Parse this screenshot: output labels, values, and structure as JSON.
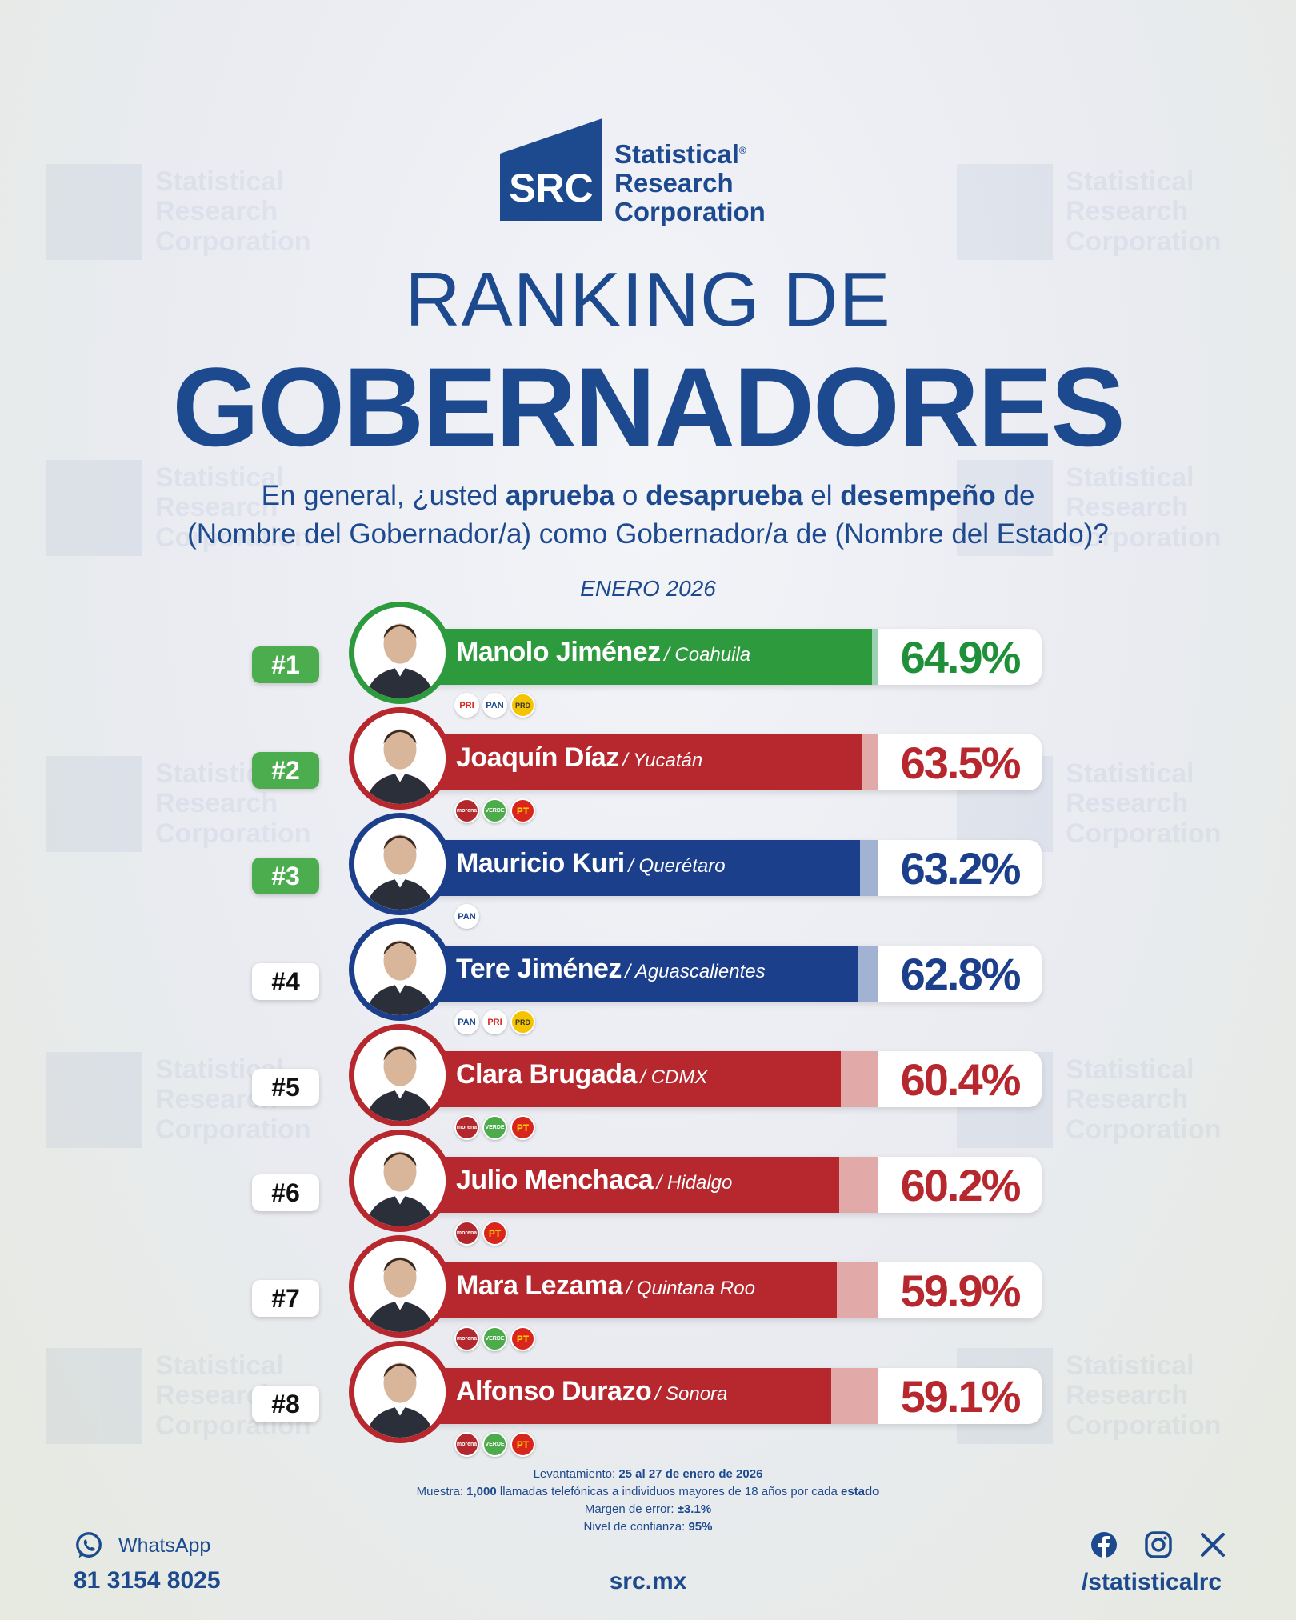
{
  "brand": {
    "logo_mark": "SRC",
    "line1": "Statistical",
    "line2": "Research",
    "line3": "Corporation",
    "registered": "®",
    "color": "#1d4a8f"
  },
  "title": {
    "top": "RANKING DE",
    "main": "GOBERNADORES"
  },
  "question": {
    "p1": "En general, ¿usted ",
    "b1": "aprueba",
    "p2": " o ",
    "b2": "desaprueba",
    "p3": " el ",
    "b3": "desempeño",
    "p4": " de",
    "line2": "(Nombre del Gobernador/a) como Gobernador/a de (Nombre del Estado)?"
  },
  "date": "ENERO 2026",
  "chart_data": {
    "type": "bar",
    "title": "RANKING DE GOBERNADORES",
    "subtitle": "ENERO 2026",
    "categories": [
      "Manolo Jiménez",
      "Joaquín Díaz",
      "Mauricio Kuri",
      "Tere Jiménez",
      "Clara Brugada",
      "Julio Menchaca",
      "Mara Lezama",
      "Alfonso Durazo"
    ],
    "values": [
      64.9,
      63.5,
      63.2,
      62.8,
      60.4,
      60.2,
      59.9,
      59.1
    ],
    "xlim": [
      0,
      100
    ],
    "rows": [
      {
        "rank": "#1",
        "name": "Manolo Jiménez",
        "state": "/ Coahuila",
        "value": 64.9,
        "label": "64.9%",
        "color": "#2e9a3e",
        "tail": "#9dd1b4",
        "text_color": "#1f8f3a",
        "top": true,
        "parties": [
          "PRI",
          "PAN",
          "PRD"
        ]
      },
      {
        "rank": "#2",
        "name": "Joaquín Díaz",
        "state": "/ Yucatán",
        "value": 63.5,
        "label": "63.5%",
        "color": "#b7282e",
        "tail": "#e2a9a9",
        "text_color": "#b7282e",
        "top": true,
        "parties": [
          "morena",
          "VERDE",
          "PT"
        ]
      },
      {
        "rank": "#3",
        "name": "Mauricio Kuri",
        "state": "/ Querétaro",
        "value": 63.2,
        "label": "63.2%",
        "color": "#1c3f8c",
        "tail": "#a1b2d2",
        "text_color": "#1c3f8c",
        "top": true,
        "parties": [
          "PAN"
        ]
      },
      {
        "rank": "#4",
        "name": "Tere Jiménez",
        "state": "/ Aguascalientes",
        "value": 62.8,
        "label": "62.8%",
        "color": "#1c3f8c",
        "tail": "#a1b2d2",
        "text_color": "#1c3f8c",
        "top": false,
        "parties": [
          "PAN",
          "PRI",
          "PRD"
        ]
      },
      {
        "rank": "#5",
        "name": "Clara Brugada",
        "state": "/ CDMX",
        "value": 60.4,
        "label": "60.4%",
        "color": "#b7282e",
        "tail": "#e2a9a9",
        "text_color": "#b7282e",
        "top": false,
        "parties": [
          "morena",
          "VERDE",
          "PT"
        ]
      },
      {
        "rank": "#6",
        "name": "Julio Menchaca",
        "state": "/ Hidalgo",
        "value": 60.2,
        "label": "60.2%",
        "color": "#b7282e",
        "tail": "#e2a9a9",
        "text_color": "#b7282e",
        "top": false,
        "parties": [
          "morena",
          "PT"
        ]
      },
      {
        "rank": "#7",
        "name": "Mara Lezama",
        "state": "/ Quintana Roo",
        "value": 59.9,
        "label": "59.9%",
        "color": "#b7282e",
        "tail": "#e2a9a9",
        "text_color": "#b7282e",
        "top": false,
        "parties": [
          "morena",
          "VERDE",
          "PT"
        ]
      },
      {
        "rank": "#8",
        "name": "Alfonso Durazo",
        "state": "/ Sonora",
        "value": 59.1,
        "label": "59.1%",
        "color": "#b7282e",
        "tail": "#e2a9a9",
        "text_color": "#b7282e",
        "top": false,
        "parties": [
          "morena",
          "VERDE",
          "PT"
        ]
      }
    ]
  },
  "footnote": {
    "l1_label": "Levantamiento: ",
    "l1_value": "25 al 27 de enero de 2026",
    "l2_label": "Muestra: ",
    "l2_value": "1,000",
    "l2_rest": " llamadas telefónicas a individuos mayores de 18 años por cada ",
    "l2_end": "estado",
    "l3_label": "Margen de error: ",
    "l3_value": "±3.1%",
    "l4_label": "Nivel de confianza: ",
    "l4_value": "95%"
  },
  "contact": {
    "whatsapp_label": "WhatsApp",
    "whatsapp_number": "81 3154 8025",
    "website": "src.mx",
    "handle": "/statisticalrc",
    "icons": [
      "whatsapp-icon",
      "facebook-icon",
      "instagram-icon",
      "x-icon"
    ]
  }
}
